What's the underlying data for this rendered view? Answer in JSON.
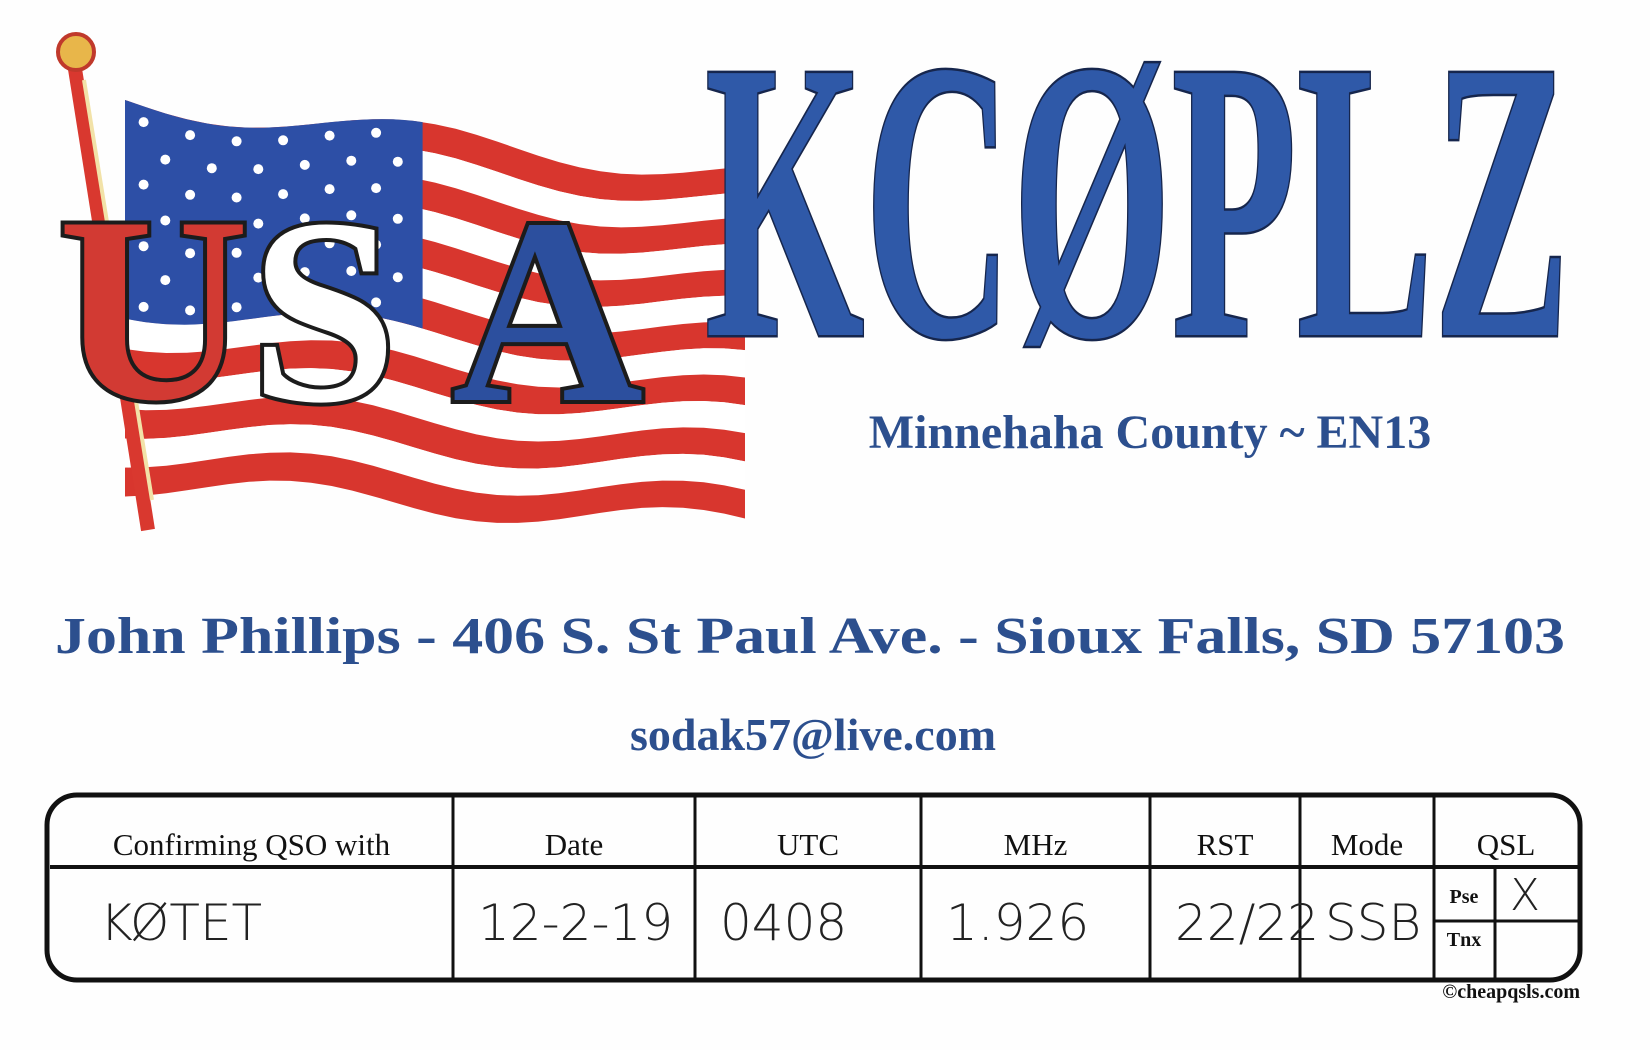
{
  "card": {
    "flag_letters": [
      "U",
      "S",
      "A"
    ],
    "callsign": "KCØPLZ",
    "location": "Minnehaha County ~ EN13",
    "address": "John Phillips - 406 S. St Paul Ave. - Sioux Falls, SD 57103",
    "email": "sodak57@live.com",
    "table": {
      "headers": [
        "Confirming QSO with",
        "Date",
        "UTC",
        "MHz",
        "RST",
        "Mode",
        "QSL"
      ],
      "values": [
        "KØTET",
        "12-2-19",
        "0408",
        "1.926",
        "22/22",
        "SSB"
      ],
      "qsl_options": [
        "Pse",
        "Tnx"
      ],
      "qsl_mark": "X"
    },
    "copyright": "©cheapqsls.com"
  }
}
